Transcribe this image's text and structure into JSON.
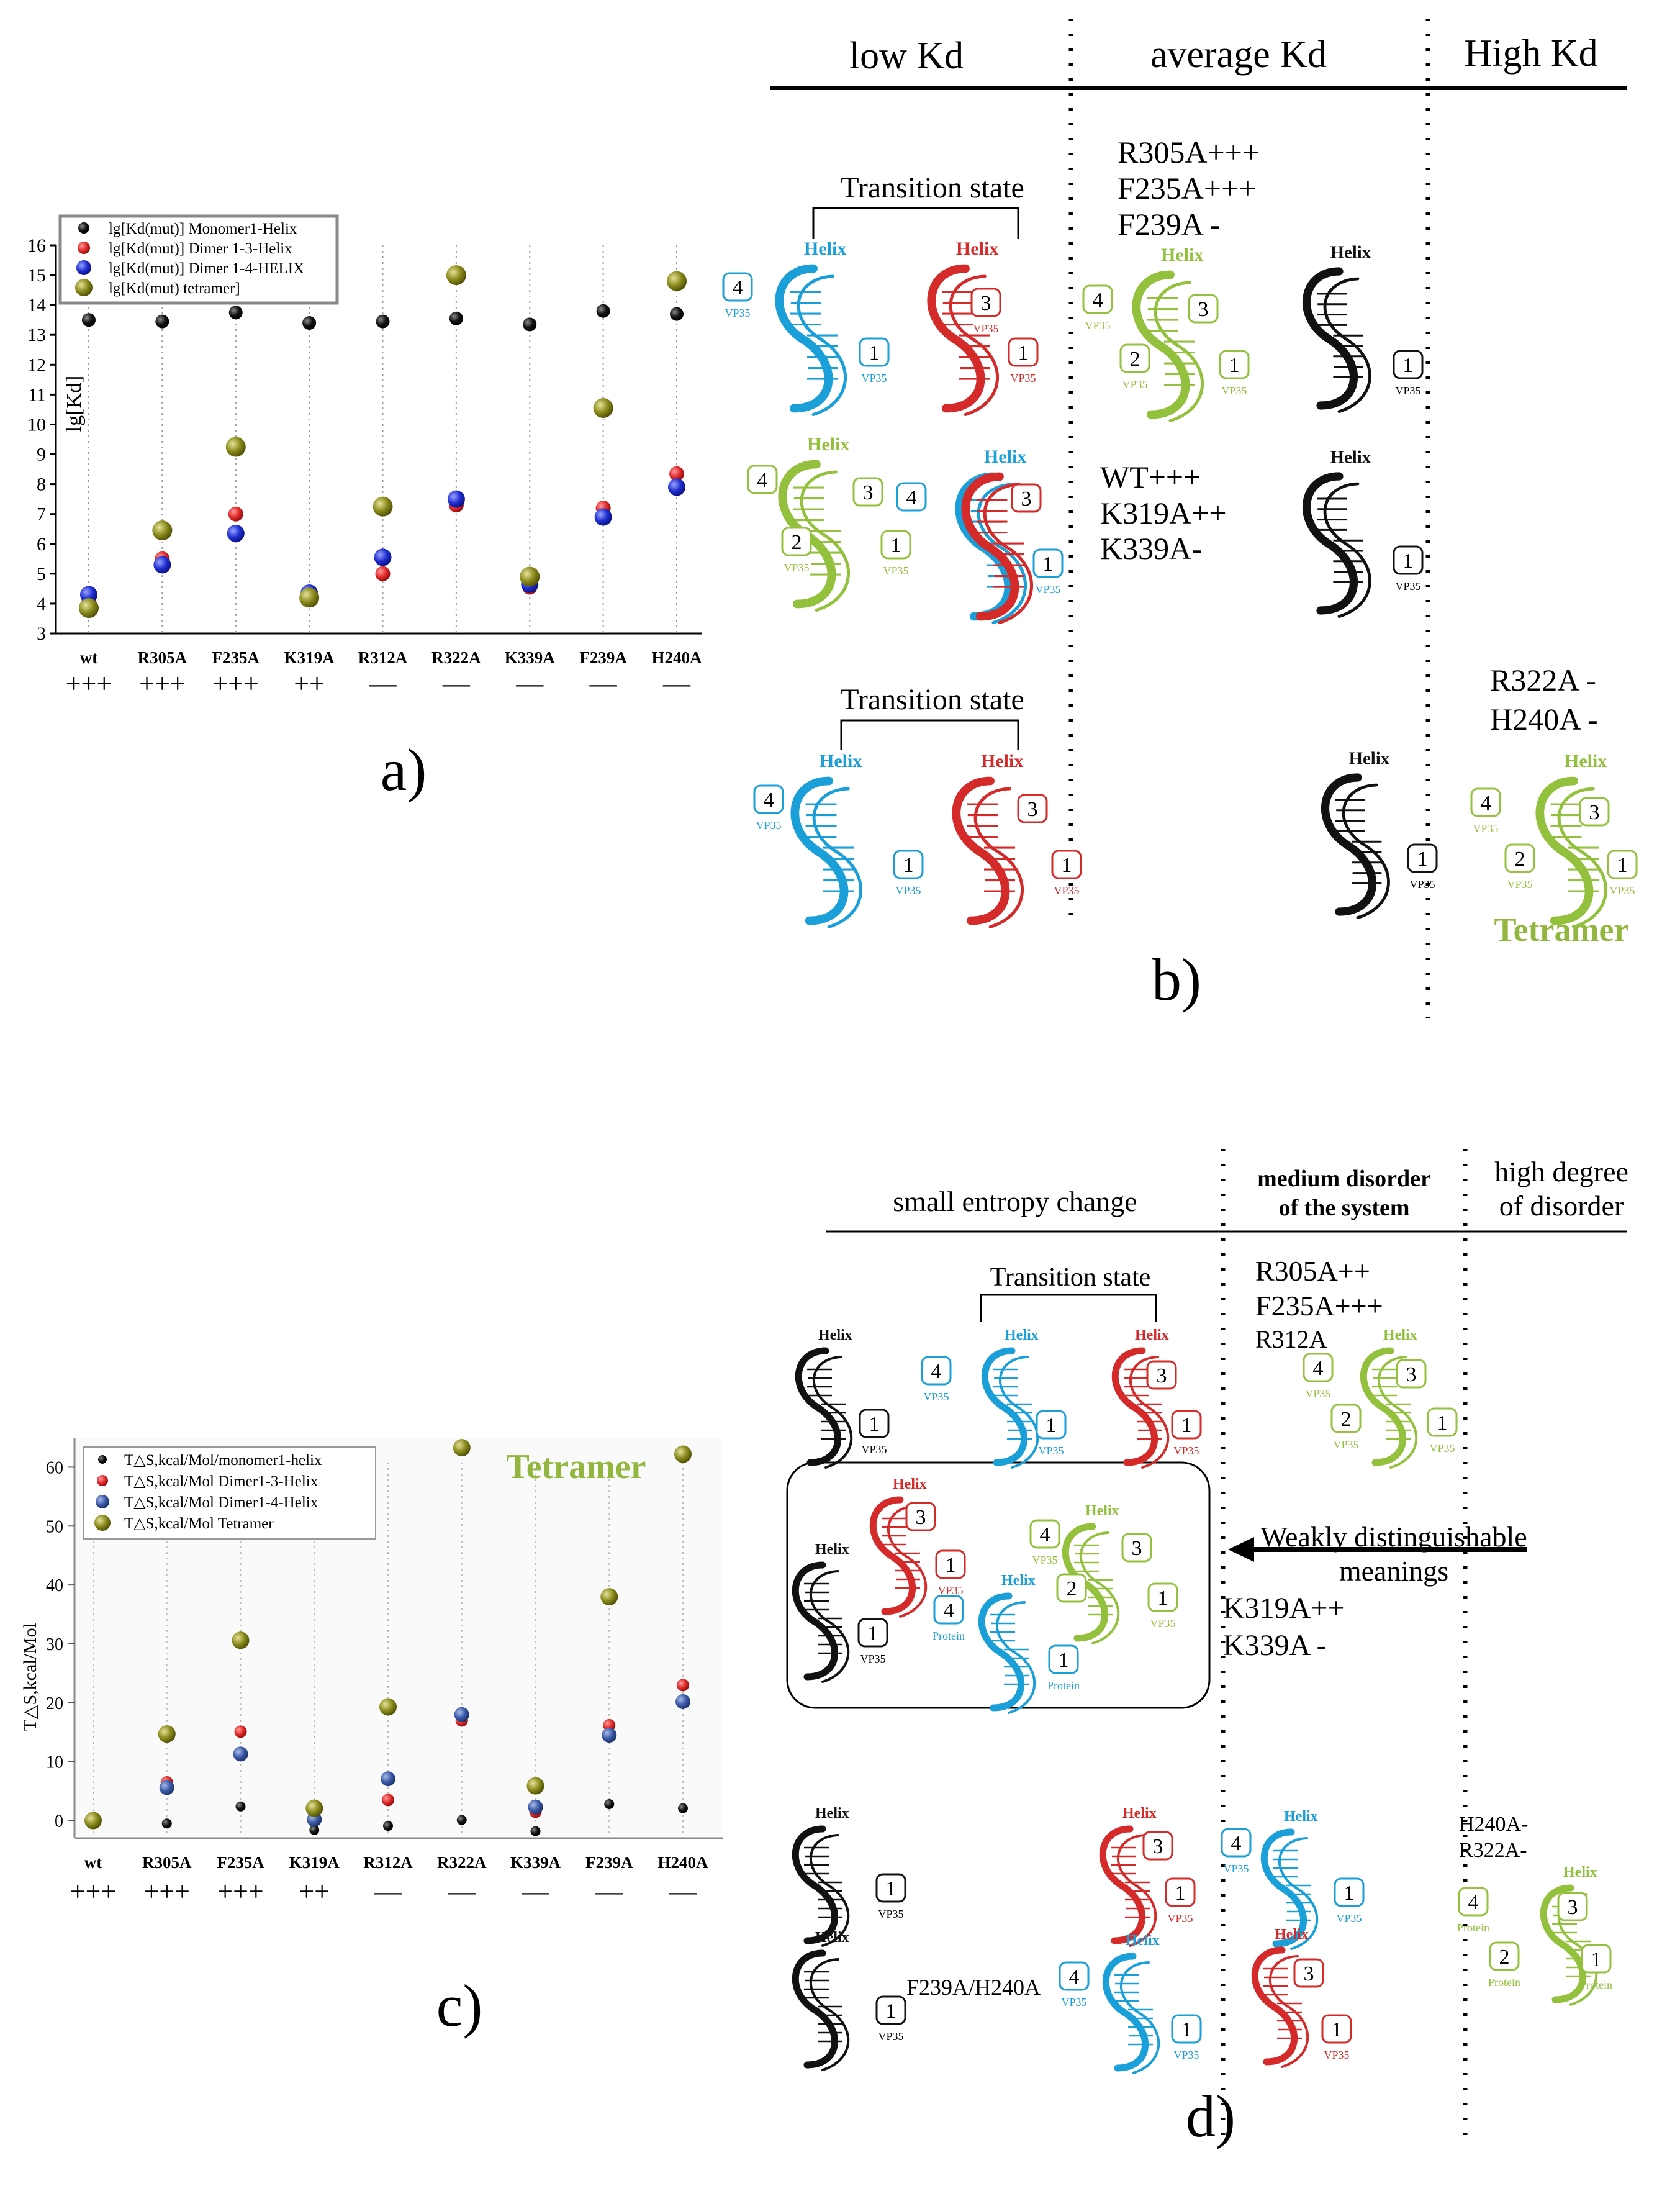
{
  "colors": {
    "black": "#111111",
    "red": "#d42a2a",
    "blue": "#2233cc",
    "olive": "#8a8a1c",
    "helix_blue": "#1a9fd8",
    "helix_red": "#d42a2a",
    "helix_green": "#93c13e",
    "helix_black": "#111111",
    "teal_blue": "#3a5aa8",
    "tetramer_label": "#93b73e"
  },
  "chart_data": [
    {
      "id": "a",
      "type": "scatter",
      "title": "",
      "ylabel": "lg[Kd]",
      "xlabel": "",
      "categories": [
        "wt",
        "R305A",
        "F235A",
        "K319A",
        "R312A",
        "R322A",
        "K339A",
        "F239A",
        "H240A"
      ],
      "signs": [
        "+++",
        "+++",
        "+++",
        "++",
        "—",
        "—",
        "—",
        "—",
        "—"
      ],
      "ylim": [
        3,
        16
      ],
      "yticks": [
        3,
        4,
        5,
        6,
        7,
        8,
        9,
        10,
        11,
        12,
        13,
        14,
        15,
        16
      ],
      "series": [
        {
          "name": "lg[Kd(mut)] Monomer1-Helix",
          "color": "#111111",
          "values": [
            13.5,
            13.45,
            13.75,
            13.4,
            13.45,
            13.55,
            13.35,
            13.8,
            13.7
          ]
        },
        {
          "name": "lg[Kd(mut)] Dimer 1-3-Helix",
          "color": "#d42a2a",
          "values": [
            4.2,
            5.5,
            7.0,
            4.3,
            5.0,
            7.3,
            4.55,
            7.2,
            8.35
          ]
        },
        {
          "name": "lg[Kd(mut)] Dimer 1-4-HELIX",
          "color": "#2233cc",
          "values": [
            4.3,
            5.3,
            6.35,
            4.35,
            5.55,
            7.5,
            4.65,
            6.9,
            7.9
          ]
        },
        {
          "name": "lg[Kd(mut) tetramer]",
          "color": "#8a8a1c",
          "values": [
            3.85,
            6.45,
            9.25,
            4.2,
            7.25,
            15.0,
            4.9,
            10.55,
            14.8
          ]
        }
      ]
    },
    {
      "id": "c",
      "type": "scatter",
      "title": "Tetramer",
      "ylabel": "T△S,kcal/Mol",
      "xlabel": "",
      "categories": [
        "wt",
        "R305A",
        "F235A",
        "K319A",
        "R312A",
        "R322A",
        "K339A",
        "F239A",
        "H240A"
      ],
      "signs": [
        "+++",
        "+++",
        "+++",
        "++",
        "—",
        "—",
        "—",
        "—",
        "—"
      ],
      "ylim": [
        -3,
        65
      ],
      "yticks": [
        0,
        10,
        20,
        30,
        40,
        50,
        60
      ],
      "series": [
        {
          "name": "T△S,kcal/Mol/monomer1-helix",
          "color": "#111111",
          "values": [
            0,
            -0.5,
            2.4,
            -1.6,
            -0.9,
            0.1,
            -1.8,
            2.8,
            2.1
          ]
        },
        {
          "name": "T△S,kcal/Mol Dimer1-3-Helix",
          "color": "#d42a2a",
          "values": [
            0,
            6.5,
            15.1,
            0.5,
            3.5,
            17.0,
            1.5,
            16.2,
            23.0
          ]
        },
        {
          "name": "T△S,kcal/Mol Dimer1-4-Helix",
          "color": "#3a5aa8",
          "values": [
            0,
            5.6,
            11.3,
            0.2,
            7.1,
            18.0,
            2.3,
            14.5,
            20.2
          ]
        },
        {
          "name": "T△S,kcal/Mol Tetramer",
          "color": "#8a8a1c",
          "values": [
            0,
            14.7,
            30.6,
            2.1,
            19.3,
            63.3,
            5.9,
            38.0,
            62.2
          ]
        }
      ]
    }
  ],
  "panel_a": {
    "letter": "a)"
  },
  "panel_b": {
    "letter": "b)",
    "headers": [
      "low Kd",
      "average Kd",
      "High Kd"
    ],
    "transition_1": "Transition state",
    "transition_2": "Transition state",
    "group1": [
      "R305A+++",
      "F235A+++",
      "F239A -"
    ],
    "group2": [
      "WT+++",
      "K319A++",
      "K339A-"
    ],
    "group3": [
      "R322A -",
      "H240A -"
    ],
    "tetramer": "Tetramer",
    "helix": "Helix",
    "vp35": "VP35"
  },
  "panel_c": {
    "letter": "c)"
  },
  "panel_d": {
    "letter": "d)",
    "header_small": "small entropy change",
    "header_medium_1": "medium disorder",
    "header_medium_2": "of the system",
    "header_high_1": "high degree",
    "header_high_2": "of disorder",
    "transition": "Transition state",
    "group1": [
      "R305A++",
      "F235A+++",
      "R312A"
    ],
    "weakly_1": "Weakly distinguishable",
    "weakly_2": "meanings",
    "group2": [
      "K319A++",
      "K339A -"
    ],
    "group3": [
      "H240A-",
      "R322A-"
    ],
    "f239": "F239A/H240A",
    "helix": "Helix",
    "vp35": "VP35",
    "protein": "Protein"
  }
}
